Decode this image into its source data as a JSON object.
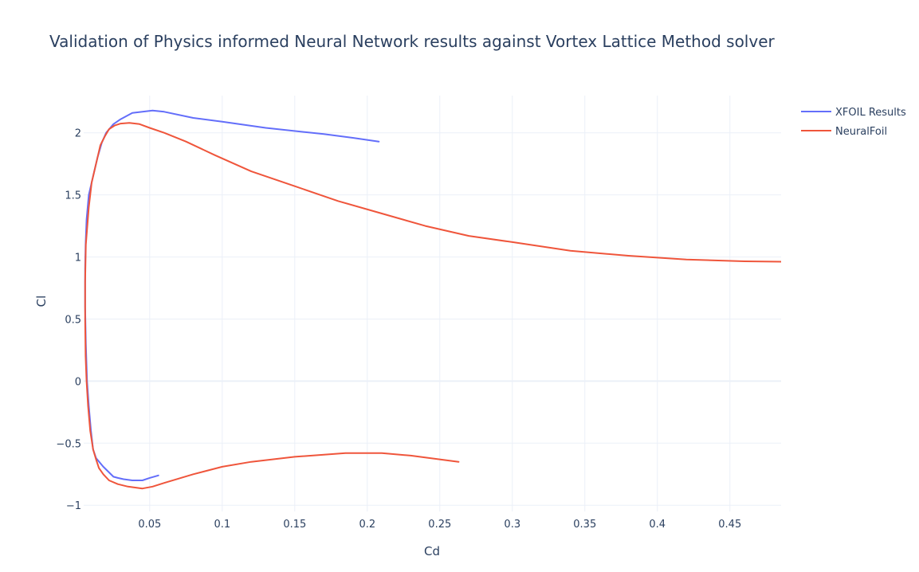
{
  "chart_data": {
    "type": "line",
    "title": "Validation of Physics informed Neural Network results against Vortex Lattice Method solver",
    "xlabel": "Cd",
    "ylabel": "Cl",
    "xlim": [
      0.0045,
      0.4853
    ],
    "ylim": [
      -1.05,
      2.3
    ],
    "x_ticks": [
      0.05,
      0.1,
      0.15,
      0.2,
      0.25,
      0.3,
      0.35,
      0.4,
      0.45
    ],
    "x_tick_labels": [
      "0.05",
      "0.1",
      "0.15",
      "0.2",
      "0.25",
      "0.3",
      "0.35",
      "0.4",
      "0.45"
    ],
    "y_ticks": [
      -1,
      -0.5,
      0,
      0.5,
      1,
      1.5,
      2
    ],
    "y_tick_labels": [
      "−1",
      "−0.5",
      "0",
      "0.5",
      "1",
      "1.5",
      "2"
    ],
    "grid": true,
    "legend_position": "top-right",
    "series": [
      {
        "name": "XFOIL Results",
        "color": "#636efa",
        "points": [
          [
            0.056,
            -0.76
          ],
          [
            0.05,
            -0.78
          ],
          [
            0.045,
            -0.8
          ],
          [
            0.038,
            -0.8
          ],
          [
            0.032,
            -0.79
          ],
          [
            0.028,
            -0.78
          ],
          [
            0.025,
            -0.77
          ],
          [
            0.018,
            -0.69
          ],
          [
            0.013,
            -0.62
          ],
          [
            0.011,
            -0.55
          ],
          [
            0.0095,
            -0.4
          ],
          [
            0.008,
            -0.2
          ],
          [
            0.0068,
            0.0
          ],
          [
            0.006,
            0.3
          ],
          [
            0.0055,
            0.6
          ],
          [
            0.0055,
            0.9
          ],
          [
            0.0058,
            1.1
          ],
          [
            0.0065,
            1.3
          ],
          [
            0.008,
            1.5
          ],
          [
            0.011,
            1.65
          ],
          [
            0.014,
            1.8
          ],
          [
            0.017,
            1.92
          ],
          [
            0.02,
            2.0
          ],
          [
            0.025,
            2.07
          ],
          [
            0.03,
            2.11
          ],
          [
            0.038,
            2.16
          ],
          [
            0.045,
            2.17
          ],
          [
            0.052,
            2.18
          ],
          [
            0.06,
            2.17
          ],
          [
            0.08,
            2.12
          ],
          [
            0.1,
            2.09
          ],
          [
            0.13,
            2.04
          ],
          [
            0.17,
            1.99
          ],
          [
            0.19,
            1.96
          ],
          [
            0.208,
            1.93
          ]
        ]
      },
      {
        "name": "NeuralFoil",
        "color": "#ef553b",
        "points": [
          [
            0.263,
            -0.65
          ],
          [
            0.23,
            -0.6
          ],
          [
            0.21,
            -0.58
          ],
          [
            0.185,
            -0.58
          ],
          [
            0.15,
            -0.61
          ],
          [
            0.12,
            -0.65
          ],
          [
            0.1,
            -0.69
          ],
          [
            0.08,
            -0.75
          ],
          [
            0.06,
            -0.82
          ],
          [
            0.052,
            -0.85
          ],
          [
            0.045,
            -0.865
          ],
          [
            0.035,
            -0.85
          ],
          [
            0.028,
            -0.83
          ],
          [
            0.022,
            -0.8
          ],
          [
            0.018,
            -0.75
          ],
          [
            0.015,
            -0.7
          ],
          [
            0.013,
            -0.63
          ],
          [
            0.011,
            -0.55
          ],
          [
            0.009,
            -0.4
          ],
          [
            0.0075,
            -0.2
          ],
          [
            0.0065,
            0.0
          ],
          [
            0.0058,
            0.2
          ],
          [
            0.0055,
            0.5
          ],
          [
            0.0055,
            0.8
          ],
          [
            0.006,
            1.1
          ],
          [
            0.008,
            1.4
          ],
          [
            0.01,
            1.6
          ],
          [
            0.013,
            1.75
          ],
          [
            0.016,
            1.9
          ],
          [
            0.019,
            1.97
          ],
          [
            0.022,
            2.03
          ],
          [
            0.026,
            2.06
          ],
          [
            0.03,
            2.075
          ],
          [
            0.036,
            2.08
          ],
          [
            0.043,
            2.07
          ],
          [
            0.05,
            2.04
          ],
          [
            0.06,
            2.0
          ],
          [
            0.075,
            1.93
          ],
          [
            0.095,
            1.82
          ],
          [
            0.12,
            1.69
          ],
          [
            0.15,
            1.57
          ],
          [
            0.18,
            1.45
          ],
          [
            0.21,
            1.35
          ],
          [
            0.24,
            1.25
          ],
          [
            0.27,
            1.17
          ],
          [
            0.3,
            1.12
          ],
          [
            0.34,
            1.05
          ],
          [
            0.38,
            1.01
          ],
          [
            0.42,
            0.98
          ],
          [
            0.46,
            0.965
          ],
          [
            0.4853,
            0.962
          ]
        ]
      }
    ]
  }
}
